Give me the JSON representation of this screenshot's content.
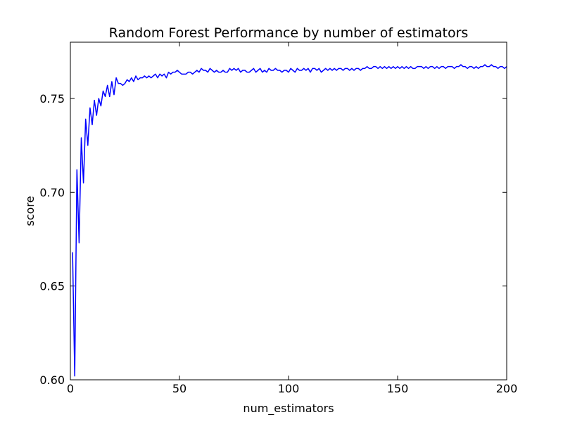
{
  "chart_data": {
    "type": "line",
    "title": "Random Forest Performance by number of estimators",
    "xlabel": "num_estimators",
    "ylabel": "score",
    "color": "#0000ff",
    "x": [
      1,
      2,
      3,
      4,
      5,
      6,
      7,
      8,
      9,
      10,
      11,
      12,
      13,
      14,
      15,
      16,
      17,
      18,
      19,
      20,
      21,
      22,
      23,
      24,
      25,
      26,
      27,
      28,
      29,
      30,
      31,
      32,
      33,
      34,
      35,
      36,
      37,
      38,
      39,
      40,
      41,
      42,
      43,
      44,
      45,
      46,
      47,
      48,
      49,
      50,
      51,
      52,
      53,
      54,
      55,
      56,
      57,
      58,
      59,
      60,
      61,
      62,
      63,
      64,
      65,
      66,
      67,
      68,
      69,
      70,
      71,
      72,
      73,
      74,
      75,
      76,
      77,
      78,
      79,
      80,
      81,
      82,
      83,
      84,
      85,
      86,
      87,
      88,
      89,
      90,
      91,
      92,
      93,
      94,
      95,
      96,
      97,
      98,
      99,
      100,
      101,
      102,
      103,
      104,
      105,
      106,
      107,
      108,
      109,
      110,
      111,
      112,
      113,
      114,
      115,
      116,
      117,
      118,
      119,
      120,
      121,
      122,
      123,
      124,
      125,
      126,
      127,
      128,
      129,
      130,
      131,
      132,
      133,
      134,
      135,
      136,
      137,
      138,
      139,
      140,
      141,
      142,
      143,
      144,
      145,
      146,
      147,
      148,
      149,
      150,
      151,
      152,
      153,
      154,
      155,
      156,
      157,
      158,
      159,
      160,
      161,
      162,
      163,
      164,
      165,
      166,
      167,
      168,
      169,
      170,
      171,
      172,
      173,
      174,
      175,
      176,
      177,
      178,
      179,
      180,
      181,
      182,
      183,
      184,
      185,
      186,
      187,
      188,
      189,
      190,
      191,
      192,
      193,
      194,
      195,
      196,
      197,
      198,
      199,
      200
    ],
    "values": [
      0.668,
      0.602,
      0.712,
      0.673,
      0.729,
      0.705,
      0.739,
      0.725,
      0.745,
      0.736,
      0.749,
      0.741,
      0.75,
      0.746,
      0.754,
      0.751,
      0.757,
      0.751,
      0.759,
      0.752,
      0.761,
      0.758,
      0.758,
      0.757,
      0.758,
      0.76,
      0.759,
      0.761,
      0.759,
      0.762,
      0.76,
      0.761,
      0.761,
      0.762,
      0.761,
      0.762,
      0.761,
      0.762,
      0.763,
      0.761,
      0.763,
      0.762,
      0.763,
      0.761,
      0.764,
      0.763,
      0.764,
      0.764,
      0.765,
      0.764,
      0.763,
      0.763,
      0.763,
      0.764,
      0.764,
      0.763,
      0.764,
      0.765,
      0.764,
      0.766,
      0.765,
      0.765,
      0.764,
      0.766,
      0.765,
      0.764,
      0.765,
      0.764,
      0.764,
      0.765,
      0.764,
      0.764,
      0.766,
      0.765,
      0.766,
      0.765,
      0.766,
      0.764,
      0.765,
      0.765,
      0.764,
      0.764,
      0.765,
      0.766,
      0.764,
      0.765,
      0.766,
      0.764,
      0.765,
      0.764,
      0.766,
      0.765,
      0.765,
      0.766,
      0.765,
      0.765,
      0.764,
      0.765,
      0.765,
      0.764,
      0.766,
      0.765,
      0.764,
      0.766,
      0.765,
      0.765,
      0.766,
      0.765,
      0.766,
      0.764,
      0.766,
      0.766,
      0.765,
      0.766,
      0.764,
      0.765,
      0.766,
      0.765,
      0.766,
      0.765,
      0.766,
      0.765,
      0.766,
      0.766,
      0.765,
      0.766,
      0.766,
      0.765,
      0.766,
      0.765,
      0.766,
      0.766,
      0.765,
      0.766,
      0.766,
      0.767,
      0.766,
      0.766,
      0.767,
      0.767,
      0.766,
      0.767,
      0.766,
      0.767,
      0.766,
      0.767,
      0.766,
      0.767,
      0.766,
      0.767,
      0.766,
      0.767,
      0.766,
      0.767,
      0.766,
      0.767,
      0.766,
      0.766,
      0.767,
      0.767,
      0.767,
      0.766,
      0.767,
      0.766,
      0.767,
      0.767,
      0.766,
      0.767,
      0.766,
      0.767,
      0.767,
      0.766,
      0.767,
      0.767,
      0.767,
      0.766,
      0.767,
      0.767,
      0.768,
      0.767,
      0.767,
      0.766,
      0.767,
      0.767,
      0.766,
      0.767,
      0.766,
      0.767,
      0.767,
      0.768,
      0.767,
      0.767,
      0.768,
      0.767,
      0.767,
      0.766,
      0.767,
      0.767,
      0.766,
      0.767
    ],
    "xlim": [
      0,
      200
    ],
    "xticks": [
      0,
      50,
      100,
      150,
      200
    ],
    "ylim": [
      0.6,
      0.78
    ],
    "yticks": [
      {
        "value": 0.6,
        "label": "0.60"
      },
      0.65,
      {
        "value": 0.7,
        "label": "0.70"
      },
      0.75
    ]
  }
}
